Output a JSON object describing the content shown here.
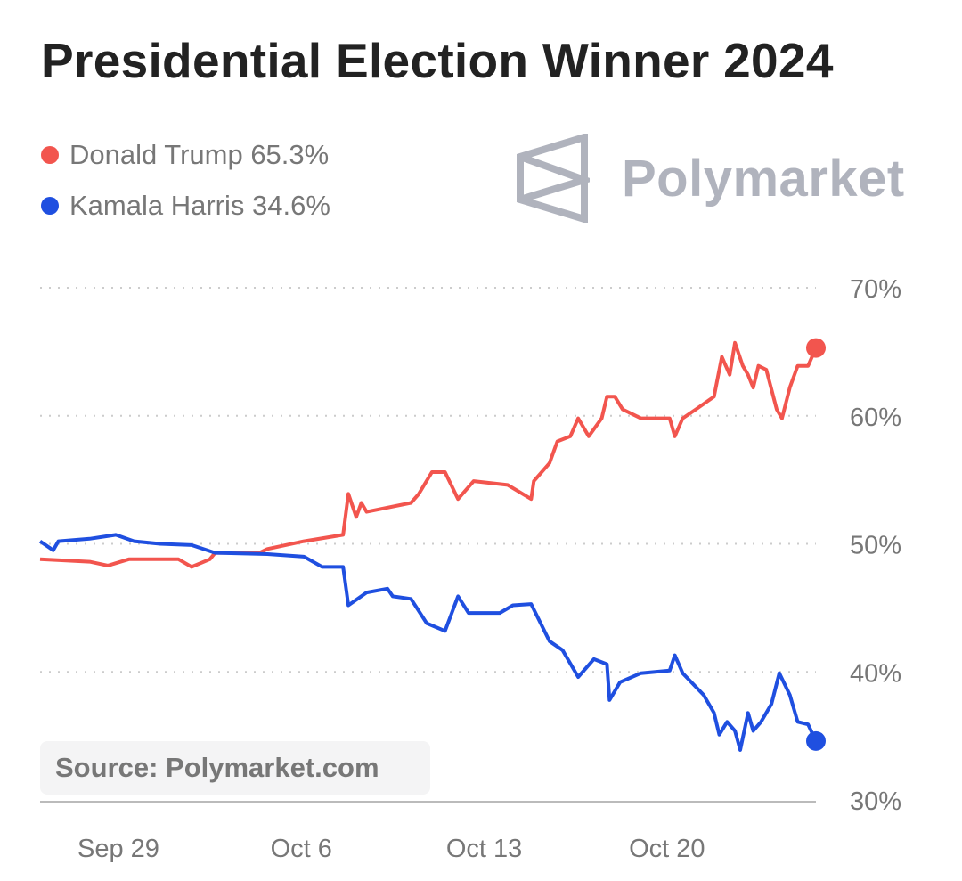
{
  "title": "Presidential Election Winner 2024",
  "logo": {
    "text": "Polymarket"
  },
  "source": "Source: Polymarket.com",
  "colors": {
    "trump": "#f2554e",
    "harris": "#1f4fe0",
    "grid": "#cccccc",
    "axis_text": "#777777"
  },
  "chart_data": {
    "type": "line",
    "title": "Presidential Election Winner 2024",
    "xlabel": "",
    "ylabel": "",
    "x_unit": "days since Sep 26",
    "xlim": [
      0,
      29.7
    ],
    "ylim": [
      30,
      70
    ],
    "y_ticks": [
      {
        "value": 70,
        "label": "70%"
      },
      {
        "value": 60,
        "label": "60%"
      },
      {
        "value": 50,
        "label": "50%"
      },
      {
        "value": 40,
        "label": "40%"
      },
      {
        "value": 30,
        "label": "30%"
      }
    ],
    "x_ticks": [
      {
        "value": 3,
        "label": "Sep 29"
      },
      {
        "value": 10,
        "label": "Oct 6"
      },
      {
        "value": 17,
        "label": "Oct 13"
      },
      {
        "value": 24,
        "label": "Oct 20"
      }
    ],
    "grid": true,
    "legend_position": "top-left",
    "series": [
      {
        "name": "Donald Trump",
        "legend": "Donald Trump 65.3%",
        "color": "#f2554e",
        "x": [
          0,
          1.9,
          2.6,
          3.4,
          5.3,
          5.8,
          6.5,
          6.7,
          8.4,
          8.7,
          10.1,
          11.6,
          11.8,
          12.1,
          12.3,
          12.5,
          14.2,
          14.5,
          15.0,
          15.5,
          16.0,
          16.6,
          17.9,
          18.8,
          18.9,
          19.5,
          19.8,
          20.3,
          20.6,
          21.0,
          21.5,
          21.7,
          22.0,
          22.3,
          23.0,
          24.1,
          24.3,
          24.6,
          25.1,
          25.8,
          26.1,
          26.4,
          26.6,
          26.9,
          27.1,
          27.3,
          27.5,
          27.8,
          28.2,
          28.4,
          28.7,
          29.0,
          29.4,
          29.7
        ],
        "y": [
          48.8,
          48.6,
          48.3,
          48.8,
          48.8,
          48.2,
          48.8,
          49.3,
          49.3,
          49.6,
          50.2,
          50.7,
          53.9,
          52.1,
          53.2,
          52.5,
          53.2,
          53.9,
          55.6,
          55.6,
          53.5,
          54.9,
          54.6,
          53.5,
          54.9,
          56.3,
          58.0,
          58.4,
          59.8,
          58.4,
          59.8,
          61.5,
          61.5,
          60.5,
          59.8,
          59.8,
          58.4,
          59.8,
          60.5,
          61.5,
          64.6,
          63.2,
          65.7,
          63.9,
          63.2,
          62.2,
          63.9,
          63.6,
          60.5,
          59.8,
          62.2,
          63.9,
          63.9,
          65.3
        ]
      },
      {
        "name": "Kamala Harris",
        "legend": "Kamala Harris 34.6%",
        "color": "#1f4fe0",
        "x": [
          0,
          0.5,
          0.7,
          1.9,
          2.9,
          3.6,
          4.6,
          5.8,
          6.7,
          8.7,
          10.1,
          10.8,
          11.6,
          11.8,
          12.5,
          13.3,
          13.5,
          14.2,
          14.8,
          15.5,
          16.0,
          16.4,
          17.6,
          18.1,
          18.8,
          19.5,
          20.0,
          20.6,
          21.2,
          21.7,
          21.8,
          22.2,
          23.0,
          24.1,
          24.3,
          24.6,
          25.4,
          25.8,
          26.0,
          26.3,
          26.6,
          26.8,
          27.1,
          27.3,
          27.6,
          28.0,
          28.3,
          28.7,
          29.0,
          29.4,
          29.7
        ],
        "y": [
          50.2,
          49.5,
          50.2,
          50.4,
          50.7,
          50.2,
          50.0,
          49.9,
          49.3,
          49.2,
          49.0,
          48.2,
          48.2,
          45.2,
          46.2,
          46.5,
          45.9,
          45.7,
          43.8,
          43.2,
          45.9,
          44.6,
          44.6,
          45.2,
          45.3,
          42.4,
          41.7,
          39.6,
          41.0,
          40.6,
          37.8,
          39.2,
          39.9,
          40.1,
          41.3,
          39.9,
          38.2,
          36.8,
          35.1,
          36.1,
          35.4,
          33.9,
          36.8,
          35.4,
          36.1,
          37.5,
          39.9,
          38.2,
          36.1,
          35.9,
          34.6
        ]
      }
    ]
  }
}
